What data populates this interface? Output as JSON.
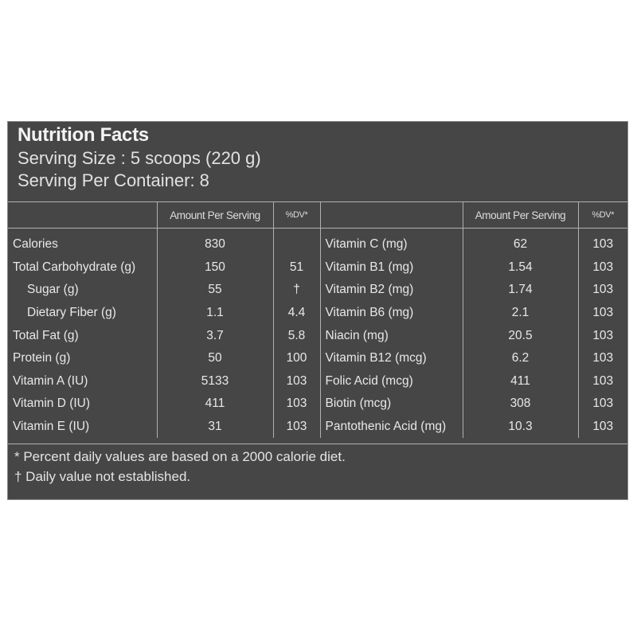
{
  "label": {
    "title": "Nutrition Facts",
    "serving_size": "Serving Size :  5 scoops (220 g)",
    "servings_per_container": "Serving Per Container: 8"
  },
  "columns": {
    "amount": "Amount Per Serving",
    "dv": "%DV*"
  },
  "left_rows": [
    {
      "name": "Calories",
      "amount": "830",
      "dv": ""
    },
    {
      "name": "Total Carbohydrate (g)",
      "amount": "150",
      "dv": "51"
    },
    {
      "name": "Sugar (g)",
      "amount": "55",
      "dv": "†"
    },
    {
      "name": "Dietary Fiber (g)",
      "amount": "1.1",
      "dv": "4.4"
    },
    {
      "name": "Total Fat (g)",
      "amount": "3.7",
      "dv": "5.8"
    },
    {
      "name": "Protein (g)",
      "amount": "50",
      "dv": "100"
    },
    {
      "name": "Vitamin A (IU)",
      "amount": "5133",
      "dv": "103"
    },
    {
      "name": "Vitamin D (IU)",
      "amount": "411",
      "dv": "103"
    },
    {
      "name": "Vitamin E (IU)",
      "amount": "31",
      "dv": "103"
    }
  ],
  "right_rows": [
    {
      "name": "Vitamin C (mg)",
      "amount": "62",
      "dv": "103"
    },
    {
      "name": "Vitamin B1 (mg)",
      "amount": "1.54",
      "dv": "103"
    },
    {
      "name": "Vitamin B2 (mg)",
      "amount": "1.74",
      "dv": "103"
    },
    {
      "name": "Vitamin B6 (mg)",
      "amount": "2.1",
      "dv": "103"
    },
    {
      "name": "Niacin (mg)",
      "amount": "20.5",
      "dv": "103"
    },
    {
      "name": "Vitamin B12 (mcg)",
      "amount": "6.2",
      "dv": "103"
    },
    {
      "name": "Folic Acid (mcg)",
      "amount": "411",
      "dv": "103"
    },
    {
      "name": "Biotin (mcg)",
      "amount": "308",
      "dv": "103"
    },
    {
      "name": "Pantothenic Acid (mg)",
      "amount": "10.3",
      "dv": "103"
    }
  ],
  "footnotes": [
    "* Percent daily values are based on a 2000 calorie diet.",
    "† Daily value not established."
  ]
}
